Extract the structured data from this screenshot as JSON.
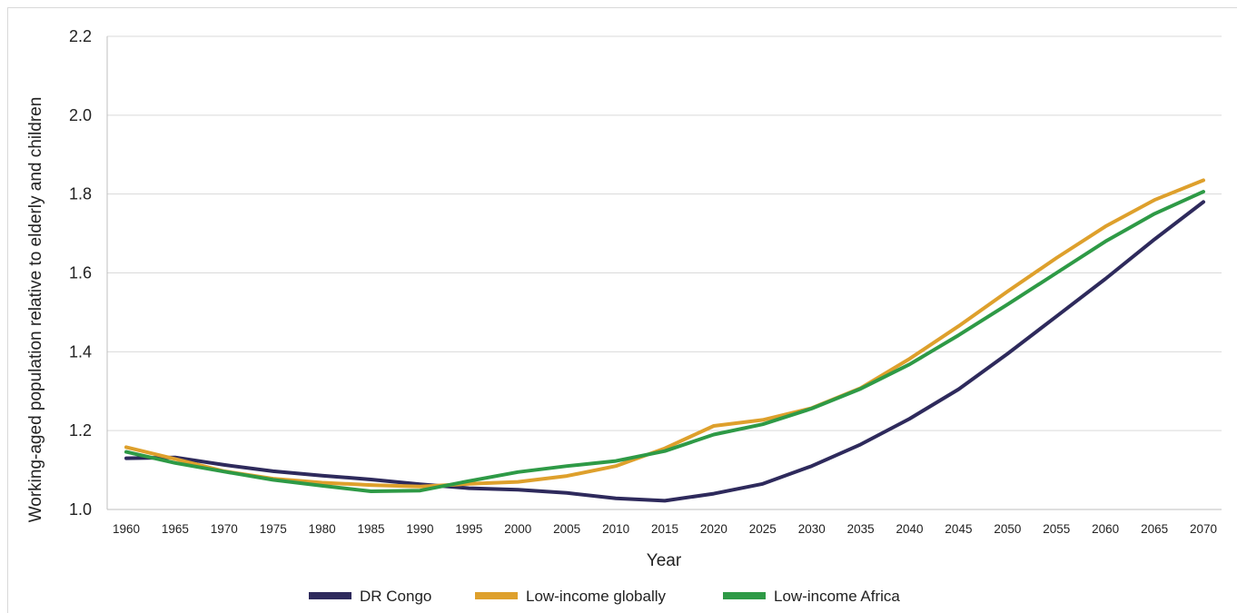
{
  "chart_data": {
    "type": "line",
    "title": "",
    "xlabel": "Year",
    "ylabel": "Working-aged population relative to elderly and children",
    "ylim": [
      1.0,
      2.2
    ],
    "yticks": [
      "1.0",
      "1.2",
      "1.4",
      "1.6",
      "1.8",
      "2.0",
      "2.2"
    ],
    "x": [
      1960,
      1965,
      1970,
      1975,
      1980,
      1985,
      1990,
      1995,
      2000,
      2005,
      2010,
      2015,
      2020,
      2025,
      2030,
      2035,
      2040,
      2045,
      2050,
      2055,
      2060,
      2065,
      2070
    ],
    "grid": "horizontal",
    "legend_position": "bottom",
    "series": [
      {
        "name": "DR Congo",
        "color": "#2e2a5c",
        "values": [
          1.13,
          1.132,
          1.113,
          1.097,
          1.086,
          1.076,
          1.064,
          1.054,
          1.05,
          1.042,
          1.028,
          1.022,
          1.04,
          1.065,
          1.11,
          1.165,
          1.23,
          1.305,
          1.395,
          1.49,
          1.585,
          1.685,
          1.78
        ]
      },
      {
        "name": "Low-income globally",
        "color": "#dea02c",
        "values": [
          1.158,
          1.128,
          1.097,
          1.078,
          1.068,
          1.062,
          1.058,
          1.065,
          1.07,
          1.085,
          1.11,
          1.155,
          1.212,
          1.227,
          1.257,
          1.308,
          1.382,
          1.465,
          1.553,
          1.638,
          1.718,
          1.785,
          1.835
        ]
      },
      {
        "name": "Low-income Africa",
        "color": "#2e9a46",
        "values": [
          1.146,
          1.118,
          1.096,
          1.075,
          1.06,
          1.046,
          1.048,
          1.072,
          1.095,
          1.11,
          1.123,
          1.148,
          1.19,
          1.216,
          1.256,
          1.306,
          1.368,
          1.442,
          1.52,
          1.6,
          1.68,
          1.75,
          1.806
        ]
      }
    ]
  }
}
